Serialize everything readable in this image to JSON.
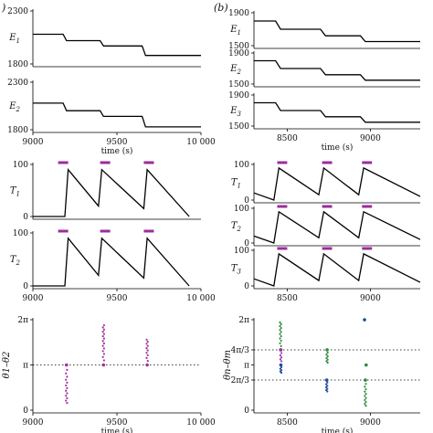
{
  "labels": {
    "panel_a": ")",
    "panel_b": "(b)",
    "xlabel_time": "time (s)"
  },
  "colors": {
    "trace": "#000000",
    "bar": "#9b2d9b",
    "phase_purple": "#a0309e",
    "phase_green": "#2e8b3a",
    "phase_blue": "#1f4e9c"
  },
  "chart_data": [
    {
      "type": "line",
      "id": "a_E1",
      "ylabel": "1",
      "xlim": [
        9000,
        10000
      ],
      "ylim": [
        1800,
        2300
      ],
      "yticks": [
        {
          "v": 1800,
          "t": "1800"
        },
        {
          "v": 2300,
          "t": "2300"
        }
      ],
      "xticks": [],
      "series": [
        {
          "x": [
            9000,
            9180,
            9200,
            9400,
            9420,
            9650,
            9670,
            10000
          ],
          "y": [
            2080,
            2080,
            2020,
            2020,
            1970,
            1970,
            1880,
            1880
          ]
        }
      ]
    },
    {
      "type": "line",
      "id": "a_E2",
      "ylabel": "2",
      "xlim": [
        9000,
        10000
      ],
      "ylim": [
        1800,
        2300
      ],
      "yticks": [
        {
          "v": 1800,
          "t": "1800"
        },
        {
          "v": 2300,
          "t": "2300"
        }
      ],
      "xticks": [
        {
          "v": 9000,
          "t": "9000"
        },
        {
          "v": 9500,
          "t": "9500"
        },
        {
          "v": 10000,
          "t": "10 000"
        }
      ],
      "xlabel": "time (s)",
      "series": [
        {
          "x": [
            9000,
            9180,
            9200,
            9400,
            9420,
            9650,
            9670,
            10000
          ],
          "y": [
            2080,
            2080,
            2000,
            2000,
            1940,
            1940,
            1830,
            1830
          ]
        }
      ]
    },
    {
      "type": "line",
      "id": "b_E1",
      "ylabel": "1",
      "xlim": [
        8300,
        9300
      ],
      "ylim": [
        1500,
        1900
      ],
      "yticks": [
        {
          "v": 1500,
          "t": "1500"
        },
        {
          "v": 1900,
          "t": "1900"
        }
      ],
      "xticks": [],
      "series": [
        {
          "x": [
            8300,
            8430,
            8460,
            8700,
            8730,
            8940,
            8970,
            9300
          ],
          "y": [
            1800,
            1800,
            1700,
            1700,
            1620,
            1620,
            1550,
            1550
          ]
        }
      ]
    },
    {
      "type": "line",
      "id": "b_E2",
      "ylabel": "2",
      "xlim": [
        8300,
        9300
      ],
      "ylim": [
        1500,
        1900
      ],
      "yticks": [
        {
          "v": 1500,
          "t": "1500"
        },
        {
          "v": 1900,
          "t": "1900"
        }
      ],
      "xticks": [],
      "series": [
        {
          "x": [
            8300,
            8430,
            8460,
            8700,
            8730,
            8940,
            8970,
            9300
          ],
          "y": [
            1800,
            1800,
            1700,
            1700,
            1620,
            1620,
            1550,
            1550
          ]
        }
      ]
    },
    {
      "type": "line",
      "id": "b_E3",
      "ylabel": "3",
      "xlim": [
        8300,
        9300
      ],
      "ylim": [
        1500,
        1900
      ],
      "yticks": [
        {
          "v": 1500,
          "t": "1500"
        },
        {
          "v": 1900,
          "t": "1900"
        }
      ],
      "xticks": [
        {
          "v": 8500,
          "t": "8500"
        },
        {
          "v": 9000,
          "t": "9000"
        }
      ],
      "xlabel": "time (s)",
      "series": [
        {
          "x": [
            8300,
            8430,
            8460,
            8700,
            8730,
            8940,
            8970,
            9300
          ],
          "y": [
            1800,
            1800,
            1700,
            1700,
            1620,
            1620,
            1550,
            1550
          ]
        }
      ]
    },
    {
      "type": "line",
      "id": "a_T1",
      "ylabel": "1",
      "xlim": [
        9000,
        10000
      ],
      "ylim": [
        0,
        100
      ],
      "yticks": [
        {
          "v": 0,
          "t": "0"
        },
        {
          "v": 100,
          "t": "100"
        }
      ],
      "xticks": [],
      "bars": [
        [
          9150,
          9210
        ],
        [
          9400,
          9460
        ],
        [
          9660,
          9720
        ]
      ],
      "series": [
        {
          "x": [
            9000,
            9190,
            9210,
            9390,
            9410,
            9660,
            9680,
            9930
          ],
          "y": [
            0,
            0,
            90,
            20,
            90,
            15,
            90,
            0
          ]
        }
      ]
    },
    {
      "type": "line",
      "id": "a_T2",
      "ylabel": "2",
      "xlim": [
        9000,
        10000
      ],
      "ylim": [
        0,
        100
      ],
      "yticks": [
        {
          "v": 0,
          "t": "0"
        },
        {
          "v": 100,
          "t": "100"
        }
      ],
      "xticks": [
        {
          "v": 9000,
          "t": "9000"
        },
        {
          "v": 9500,
          "t": "9500"
        },
        {
          "v": 10000,
          "t": "10 000"
        }
      ],
      "bars": [
        [
          9150,
          9210
        ],
        [
          9400,
          9460
        ],
        [
          9660,
          9720
        ]
      ],
      "series": [
        {
          "x": [
            9000,
            9190,
            9210,
            9390,
            9410,
            9660,
            9680,
            9930
          ],
          "y": [
            0,
            0,
            90,
            20,
            90,
            15,
            90,
            0
          ]
        }
      ]
    },
    {
      "type": "line",
      "id": "b_T1",
      "ylabel": "1",
      "xlim": [
        8300,
        9300
      ],
      "ylim": [
        0,
        100
      ],
      "yticks": [
        {
          "v": 0,
          "t": "0"
        },
        {
          "v": 100,
          "t": "100"
        }
      ],
      "xticks": [],
      "bars": [
        [
          8440,
          8500
        ],
        [
          8710,
          8770
        ],
        [
          8950,
          9010
        ]
      ],
      "series": [
        {
          "x": [
            8300,
            8420,
            8450,
            8690,
            8720,
            8930,
            8960,
            9300
          ],
          "y": [
            20,
            0,
            90,
            15,
            90,
            15,
            90,
            10
          ]
        }
      ]
    },
    {
      "type": "line",
      "id": "b_T2",
      "ylabel": "2",
      "xlim": [
        8300,
        9300
      ],
      "ylim": [
        0,
        100
      ],
      "yticks": [
        {
          "v": 0,
          "t": "0"
        },
        {
          "v": 100,
          "t": "100"
        }
      ],
      "xticks": [],
      "bars": [
        [
          8440,
          8500
        ],
        [
          8710,
          8770
        ],
        [
          8950,
          9010
        ]
      ],
      "series": [
        {
          "x": [
            8300,
            8420,
            8450,
            8690,
            8720,
            8930,
            8960,
            9300
          ],
          "y": [
            20,
            0,
            90,
            15,
            90,
            15,
            90,
            10
          ]
        }
      ]
    },
    {
      "type": "line",
      "id": "b_T3",
      "ylabel": "3",
      "xlim": [
        8300,
        9300
      ],
      "ylim": [
        0,
        100
      ],
      "yticks": [
        {
          "v": 0,
          "t": "0"
        },
        {
          "v": 100,
          "t": "100"
        }
      ],
      "xticks": [
        {
          "v": 8500,
          "t": "8500"
        },
        {
          "v": 9000,
          "t": "9000"
        }
      ],
      "bars": [
        [
          8440,
          8500
        ],
        [
          8710,
          8770
        ],
        [
          8950,
          9010
        ]
      ],
      "series": [
        {
          "x": [
            8300,
            8420,
            8450,
            8690,
            8720,
            8930,
            8960,
            9300
          ],
          "y": [
            20,
            0,
            90,
            15,
            90,
            15,
            90,
            10
          ]
        }
      ]
    },
    {
      "type": "scatter",
      "id": "a_phase",
      "ylabel": "θ1–θ2",
      "xlim": [
        9000,
        10000
      ],
      "ylim": [
        0,
        6.2832
      ],
      "yticks": [
        {
          "v": 0,
          "t": "0"
        },
        {
          "v": 3.1416,
          "t": "π"
        },
        {
          "v": 6.2832,
          "t": "2π"
        }
      ],
      "xticks": [
        {
          "v": 9000,
          "t": "9000"
        },
        {
          "v": 9500,
          "t": "9500"
        },
        {
          "v": 10000,
          "t": "10 000"
        }
      ],
      "xlabel": "time (s)",
      "hlines": [
        3.1416
      ],
      "bursts": [
        {
          "x": 9200,
          "from": 3.1416,
          "to": 0.5,
          "count": 14,
          "color": "#a0309e"
        },
        {
          "x": 9420,
          "from": 3.1416,
          "to": 5.9,
          "count": 16,
          "color": "#a0309e"
        },
        {
          "x": 9680,
          "from": 3.1416,
          "to": 4.9,
          "count": 11,
          "color": "#a0309e"
        }
      ]
    },
    {
      "type": "scatter",
      "id": "b_phase",
      "ylabel": "θn–θm",
      "xlim": [
        8300,
        9300
      ],
      "ylim": [
        0,
        6.2832
      ],
      "yticks": [
        {
          "v": 0,
          "t": "0"
        },
        {
          "v": 2.0944,
          "t": "2π/3"
        },
        {
          "v": 3.1416,
          "t": "π"
        },
        {
          "v": 4.1888,
          "t": "4π/3"
        },
        {
          "v": 6.2832,
          "t": "2π"
        }
      ],
      "xticks": [
        {
          "v": 8500,
          "t": "8500"
        },
        {
          "v": 9000,
          "t": "9000"
        }
      ],
      "xlabel": "time (s)",
      "hlines": [
        2.0944,
        4.1888
      ],
      "bursts": [
        {
          "x": 8460,
          "from": 4.19,
          "to": 6.1,
          "count": 13,
          "color": "#2e8b3a"
        },
        {
          "x": 8462,
          "from": 4.19,
          "to": 3.4,
          "count": 6,
          "color": "#a0309e"
        },
        {
          "x": 8462,
          "from": 3.14,
          "to": 2.6,
          "count": 6,
          "color": "#1f4e9c"
        },
        {
          "x": 8740,
          "from": 4.19,
          "to": 3.3,
          "count": 8,
          "color": "#2e8b3a"
        },
        {
          "x": 8738,
          "from": 2.09,
          "to": 1.3,
          "count": 8,
          "color": "#1f4e9c"
        },
        {
          "x": 8970,
          "from": 2.09,
          "to": 0.3,
          "count": 12,
          "color": "#2e8b3a"
        },
        {
          "x": 8975,
          "from": 3.14,
          "to": 3.14,
          "count": 1,
          "color": "#2e8b3a"
        },
        {
          "x": 8965,
          "from": 6.28,
          "to": 6.28,
          "count": 1,
          "color": "#1f4e9c"
        }
      ]
    }
  ]
}
